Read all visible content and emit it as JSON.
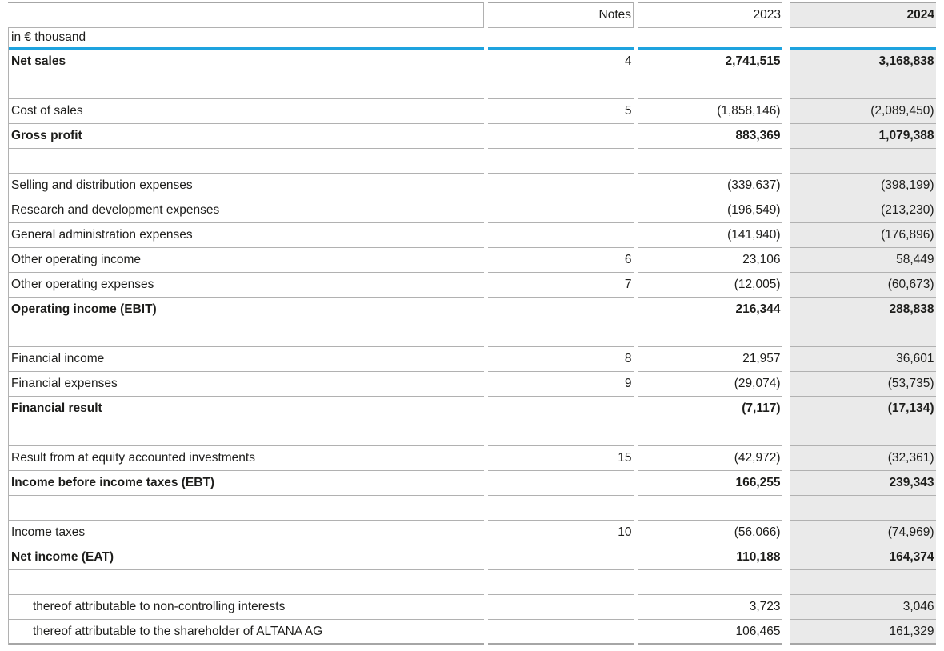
{
  "table": {
    "unit_label": "in € thousand",
    "header": {
      "label": "",
      "notes": "Notes",
      "y2023": "2023",
      "y2024": "2024"
    },
    "colors": {
      "accent_blue": "#1ea3df",
      "highlight_column_bg": "#eaeaea",
      "rule_gray": "#b1b1b1",
      "text": "#1d1d1b"
    },
    "rows": [
      {
        "label": "Net sales",
        "notes": "4",
        "y2023": "2,741,515",
        "y2024": "3,168,838",
        "bold": true
      },
      {
        "spacer": true
      },
      {
        "label": "Cost of sales",
        "notes": "5",
        "y2023": "(1,858,146)",
        "y2024": "(2,089,450)"
      },
      {
        "label": "Gross profit",
        "notes": "",
        "y2023": "883,369",
        "y2024": "1,079,388",
        "bold": true
      },
      {
        "spacer": true
      },
      {
        "label": "Selling and distribution expenses",
        "notes": "",
        "y2023": "(339,637)",
        "y2024": "(398,199)"
      },
      {
        "label": "Research and development expenses",
        "notes": "",
        "y2023": "(196,549)",
        "y2024": "(213,230)"
      },
      {
        "label": "General administration expenses",
        "notes": "",
        "y2023": "(141,940)",
        "y2024": "(176,896)"
      },
      {
        "label": "Other operating income",
        "notes": "6",
        "y2023": "23,106",
        "y2024": "58,449"
      },
      {
        "label": "Other operating expenses",
        "notes": "7",
        "y2023": "(12,005)",
        "y2024": "(60,673)"
      },
      {
        "label": "Operating income (EBIT)",
        "notes": "",
        "y2023": "216,344",
        "y2024": "288,838",
        "bold": true
      },
      {
        "spacer": true
      },
      {
        "label": "Financial income",
        "notes": "8",
        "y2023": "21,957",
        "y2024": "36,601"
      },
      {
        "label": "Financial expenses",
        "notes": "9",
        "y2023": "(29,074)",
        "y2024": "(53,735)"
      },
      {
        "label": "Financial result",
        "notes": "",
        "y2023": "(7,117)",
        "y2024": "(17,134)",
        "bold": true
      },
      {
        "spacer": true
      },
      {
        "label": "Result from at equity accounted investments",
        "notes": "15",
        "y2023": "(42,972)",
        "y2024": "(32,361)"
      },
      {
        "label": "Income before income taxes (EBT)",
        "notes": "",
        "y2023": "166,255",
        "y2024": "239,343",
        "bold": true
      },
      {
        "spacer": true
      },
      {
        "label": "Income taxes",
        "notes": "10",
        "y2023": "(56,066)",
        "y2024": "(74,969)"
      },
      {
        "label": "Net income (EAT)",
        "notes": "",
        "y2023": "110,188",
        "y2024": "164,374",
        "bold": true
      },
      {
        "spacer": true
      },
      {
        "label": "thereof attributable to non-controlling interests",
        "notes": "",
        "y2023": "3,723",
        "y2024": "3,046",
        "indent": true
      },
      {
        "label": "thereof attributable to the shareholder of ALTANA AG",
        "notes": "",
        "y2023": "106,465",
        "y2024": "161,329",
        "indent": true
      }
    ]
  }
}
